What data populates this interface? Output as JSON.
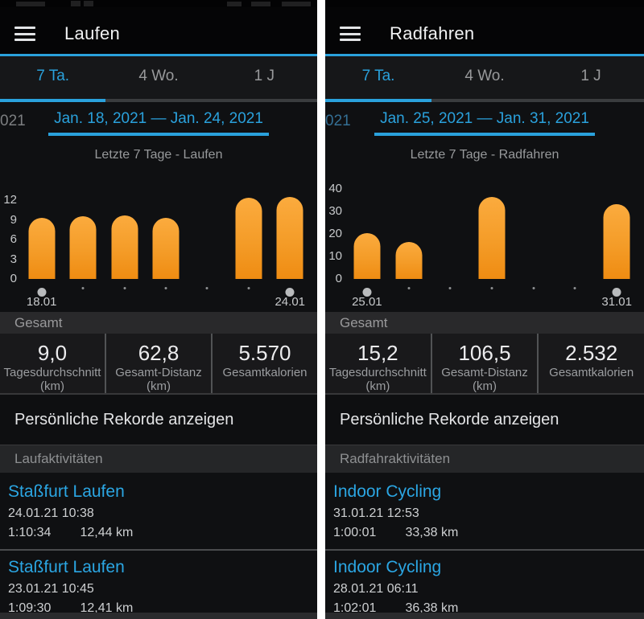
{
  "accent_blue": "#2aa1dc",
  "bar_gradient": [
    "#fbab3e",
    "#ef8c12"
  ],
  "shared": {
    "menu_icon": "hamburger-menu",
    "tabs": [
      {
        "label": "7 Ta."
      },
      {
        "label": "4 Wo."
      },
      {
        "label": "1 J"
      }
    ],
    "totals_header": "Gesamt",
    "records_link": "Persönliche Rekorde anzeigen"
  },
  "panels": [
    {
      "title": "Laufen",
      "prev_period_fragment": "021",
      "date_range": "Jan. 18, 2021 — Jan. 24, 2021",
      "subtitle": "Letzte 7 Tage - Laufen",
      "stats": [
        {
          "value": "9,0",
          "label": "Tagesdurchschnitt",
          "sublabel": "(km)"
        },
        {
          "value": "62,8",
          "label": "Gesamt-Distanz",
          "sublabel": "(km)"
        },
        {
          "value": "5.570",
          "label": "Gesamtkalorien",
          "sublabel": ""
        }
      ],
      "activities_header": "Laufaktivitäten",
      "activities": [
        {
          "title": "Staßfurt Laufen",
          "datetime": "24.01.21 10:38",
          "duration": "1:10:34",
          "distance": "12,44 km"
        },
        {
          "title": "Staßfurt Laufen",
          "datetime": "23.01.21 10:45",
          "duration": "1:09:30",
          "distance": "12,41 km"
        }
      ]
    },
    {
      "title": "Radfahren",
      "prev_period_fragment": "021",
      "date_range": "Jan. 25, 2021 — Jan. 31, 2021",
      "subtitle": "Letzte 7 Tage - Radfahren",
      "stats": [
        {
          "value": "15,2",
          "label": "Tagesdurchschnitt",
          "sublabel": "(km)"
        },
        {
          "value": "106,5",
          "label": "Gesamt-Distanz",
          "sublabel": "(km)"
        },
        {
          "value": "2.532",
          "label": "Gesamtkalorien",
          "sublabel": ""
        }
      ],
      "activities_header": "Radfahraktivitäten",
      "activities": [
        {
          "title": "Indoor Cycling",
          "datetime": "31.01.21 12:53",
          "duration": "1:00:01",
          "distance": "33,38 km"
        },
        {
          "title": "Indoor Cycling",
          "datetime": "28.01.21 06:11",
          "duration": "1:02:01",
          "distance": "36,38 km"
        }
      ]
    }
  ],
  "chart_data": [
    {
      "type": "bar",
      "title": "Letzte 7 Tage - Laufen",
      "categories": [
        "18.01",
        "19.01",
        "20.01",
        "21.01",
        "22.01",
        "23.01",
        "24.01"
      ],
      "values": [
        9.3,
        9.6,
        9.7,
        9.3,
        0,
        12.41,
        12.44
      ],
      "yticks": [
        0,
        3,
        6,
        9,
        12
      ],
      "ylim": [
        0,
        13
      ],
      "x_tick_labels_shown": [
        "18.01",
        "24.01"
      ],
      "ylabel": "km",
      "grid": false,
      "legend": "none"
    },
    {
      "type": "bar",
      "title": "Letzte 7 Tage - Radfahren",
      "categories": [
        "25.01",
        "26.01",
        "27.01",
        "28.01",
        "29.01",
        "30.01",
        "31.01"
      ],
      "values": [
        20.3,
        16.4,
        0,
        36.38,
        0,
        0,
        33.38
      ],
      "yticks": [
        0,
        10,
        20,
        30,
        40
      ],
      "ylim": [
        0,
        43
      ],
      "x_tick_labels_shown": [
        "25.01",
        "31.01"
      ],
      "ylabel": "km",
      "grid": false,
      "legend": "none"
    }
  ]
}
